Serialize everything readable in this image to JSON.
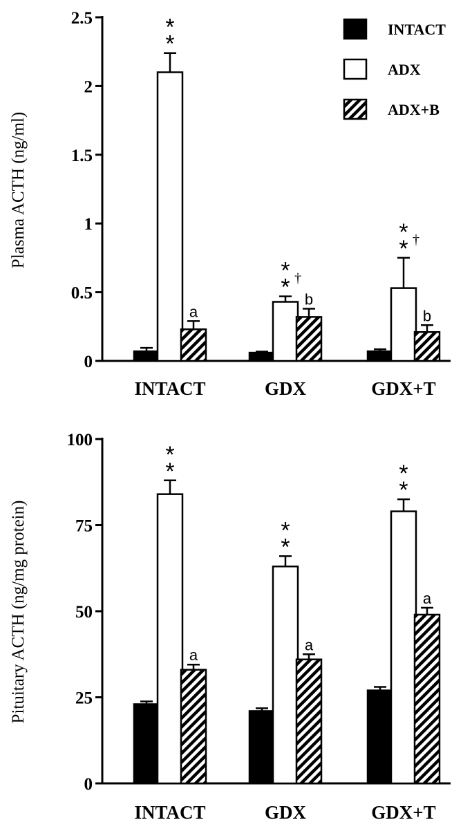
{
  "colors": {
    "intact": "#000000",
    "adx": "#ffffff",
    "adxb_stripe": "#000000",
    "background": "#ffffff"
  },
  "legend": [
    {
      "label": "INTACT",
      "fill": "solid-black"
    },
    {
      "label": "ADX",
      "fill": "white"
    },
    {
      "label": "ADX+B",
      "fill": "diagonal-hatch"
    }
  ],
  "chart_data": [
    {
      "type": "bar",
      "ylabel": "Plasma ACTH (ng/ml)",
      "ylim": [
        0,
        2.5
      ],
      "yticks": [
        0,
        0.5,
        1,
        1.5,
        2,
        2.5
      ],
      "ytick_labels": [
        "0",
        "0.5",
        "1",
        "1.5",
        "2",
        "2.5"
      ],
      "categories": [
        "INTACT",
        "GDX",
        "GDX+T"
      ],
      "legend_position": "top-right",
      "series": [
        {
          "name": "INTACT",
          "values": [
            0.07,
            0.06,
            0.07
          ],
          "errors": [
            0.025,
            0.008,
            0.015
          ],
          "annotations": [
            "",
            "",
            ""
          ]
        },
        {
          "name": "ADX",
          "values": [
            2.1,
            0.43,
            0.53
          ],
          "errors": [
            0.14,
            0.04,
            0.22
          ],
          "annotations": [
            "**",
            "**†",
            "**†"
          ]
        },
        {
          "name": "ADX+B",
          "values": [
            0.23,
            0.32,
            0.21
          ],
          "errors": [
            0.06,
            0.06,
            0.05
          ],
          "annotations": [
            "a",
            "b",
            "b"
          ]
        }
      ]
    },
    {
      "type": "bar",
      "ylabel": "Pituitary ACTH (ng/mg protein)",
      "ylim": [
        0,
        100
      ],
      "yticks": [
        0,
        25,
        50,
        75,
        100
      ],
      "ytick_labels": [
        "0",
        "25",
        "50",
        "75",
        "100"
      ],
      "categories": [
        "INTACT",
        "GDX",
        "GDX+T"
      ],
      "series": [
        {
          "name": "INTACT",
          "values": [
            23,
            21,
            27
          ],
          "errors": [
            0.8,
            0.8,
            1.0
          ],
          "annotations": [
            "",
            "",
            ""
          ]
        },
        {
          "name": "ADX",
          "values": [
            84,
            63,
            79
          ],
          "errors": [
            4,
            3,
            3.5
          ],
          "annotations": [
            "**",
            "**",
            "**"
          ]
        },
        {
          "name": "ADX+B",
          "values": [
            33,
            36,
            49
          ],
          "errors": [
            1.5,
            1.5,
            2
          ],
          "annotations": [
            "a",
            "a",
            "a"
          ]
        }
      ]
    }
  ]
}
